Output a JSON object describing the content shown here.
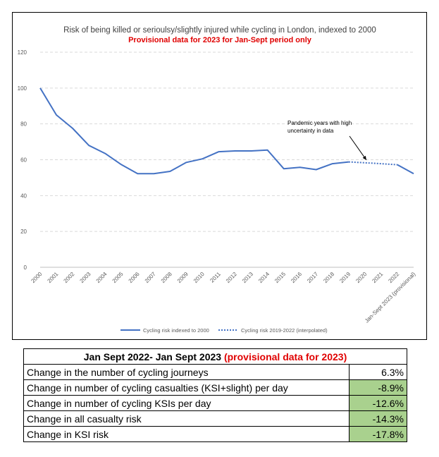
{
  "chart_data": {
    "type": "line",
    "title": "Risk of being killed or serioulsy/slightly injured while cycling in London, indexed to 2000",
    "subtitle": "Provisional data for 2023 for Jan-Sept period only",
    "categories": [
      "2000",
      "2001",
      "2002",
      "2003",
      "2004",
      "2005",
      "2006",
      "2007",
      "2008",
      "2009",
      "2010",
      "2011",
      "2012",
      "2013",
      "2014",
      "2015",
      "2016",
      "2017",
      "2018",
      "2019",
      "2020",
      "2021",
      "2022",
      "Jan-Sept 2023 (provisional)"
    ],
    "series": [
      {
        "name": "Cycling risk indexed to 2000",
        "style": "solid",
        "color": "#4472c4",
        "values": [
          100,
          85,
          77.5,
          68,
          63.5,
          57.3,
          52.2,
          52.2,
          53.5,
          58.5,
          60.5,
          64.5,
          64.9,
          64.9,
          65.4,
          55,
          55.8,
          54.5,
          57.8,
          58.8,
          null,
          null,
          57.2,
          52.2
        ]
      },
      {
        "name": "Cycling risk 2019-2022 (interpolated)",
        "style": "dotted",
        "color": "#4472c4",
        "values": [
          null,
          null,
          null,
          null,
          null,
          null,
          null,
          null,
          null,
          null,
          null,
          null,
          null,
          null,
          null,
          null,
          null,
          null,
          null,
          58.8,
          58.3,
          57.8,
          57.2,
          null
        ]
      }
    ],
    "ylim": [
      0,
      120
    ],
    "yticks": [
      0,
      20,
      40,
      60,
      80,
      100,
      120
    ],
    "xlabel": "",
    "ylabel": "",
    "grid": "horizontal dashed",
    "legend": "bottom",
    "annotation": {
      "lines": [
        "Pandemic years with high",
        "uncertainty in data"
      ],
      "points_to": "2020"
    }
  },
  "table": {
    "header_black": "Jan Sept 2022- Jan Sept 2023 ",
    "header_red": "(provisional data for 2023)",
    "rows": [
      {
        "label": "Change in the number of cycling journeys",
        "value": "6.3%"
      },
      {
        "label": "Change in number of cycling casualties (KSI+slight) per day",
        "value": "-8.9%"
      },
      {
        "label": "Change in number of cycling KSIs per day",
        "value": "-12.6%"
      },
      {
        "label": "Change in all casualty risk",
        "value": "-14.3%"
      },
      {
        "label": "Change in KSI risk",
        "value": "-17.8%"
      }
    ],
    "highlight_color": "#a9d18e"
  }
}
